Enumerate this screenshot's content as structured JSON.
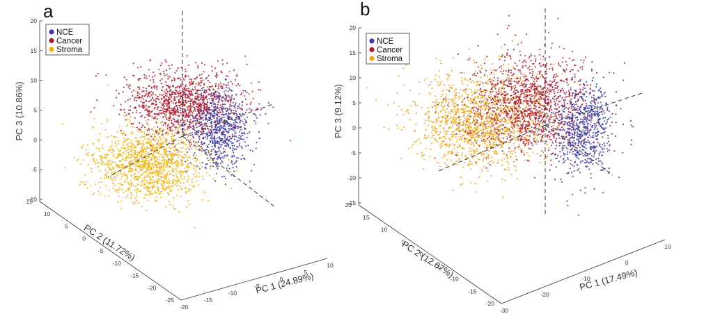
{
  "chart_data": [
    {
      "type": "scatter",
      "panel": "a",
      "view": "3d",
      "title": "",
      "xlabel": "PC 1 (24.89%)",
      "ylabel": "PC 2 (11.72%)",
      "zlabel": "PC 3 (10.86%)",
      "x_ticks": [
        "-20",
        "-15",
        "-10",
        "-5",
        "0",
        "5",
        "10"
      ],
      "y_ticks": [
        "-25",
        "-20",
        "-15",
        "-10",
        "-5",
        "0",
        "5",
        "10",
        "15"
      ],
      "z_ticks": [
        "-10",
        "-5",
        "0",
        "5",
        "10",
        "15",
        "20"
      ],
      "xlim": [
        -20,
        10
      ],
      "ylim": [
        -25,
        15
      ],
      "zlim": [
        -10,
        20
      ],
      "legend_position": "top-left",
      "grid": false,
      "series": [
        {
          "name": "NCE",
          "color": "#3b3aa8",
          "centroid": [
            5,
            -2,
            2
          ],
          "spread": [
            3.5,
            4,
            4
          ]
        },
        {
          "name": "Cancer",
          "color": "#b01c2e",
          "centroid": [
            0,
            0,
            8
          ],
          "spread": [
            5,
            5,
            5
          ]
        },
        {
          "name": "Stroma",
          "color": "#f2b10c",
          "centroid": [
            -8,
            2,
            -3
          ],
          "spread": [
            5,
            6,
            4
          ]
        }
      ]
    },
    {
      "type": "scatter",
      "panel": "b",
      "view": "3d",
      "title": "",
      "xlabel": "PC 1 (17.49%)",
      "ylabel": "PC 2 (12.67%)",
      "zlabel": "PC 3 (9.12%)",
      "x_ticks": [
        "-30",
        "-20",
        "-10",
        "0",
        "10"
      ],
      "y_ticks": [
        "-20",
        "-15",
        "-10",
        "-5",
        "0",
        "5",
        "10",
        "15",
        "20"
      ],
      "z_ticks": [
        "-15",
        "-10",
        "-5",
        "0",
        "5",
        "10",
        "15",
        "20"
      ],
      "xlim": [
        -30,
        10
      ],
      "ylim": [
        -20,
        20
      ],
      "zlim": [
        -15,
        20
      ],
      "legend_position": "top-left",
      "grid": false,
      "series": [
        {
          "name": "NCE",
          "color": "#3b3aa8",
          "centroid": [
            6,
            -3,
            -1
          ],
          "spread": [
            3.5,
            4,
            5
          ]
        },
        {
          "name": "Cancer",
          "color": "#b01c2e",
          "centroid": [
            -4,
            0,
            2
          ],
          "spread": [
            7,
            6,
            6
          ]
        },
        {
          "name": "Stroma",
          "color": "#f0a312",
          "centroid": [
            -15,
            4,
            0
          ],
          "spread": [
            9,
            8,
            5
          ]
        }
      ]
    }
  ],
  "panels": [
    {
      "letter": "a"
    },
    {
      "letter": "b"
    }
  ]
}
